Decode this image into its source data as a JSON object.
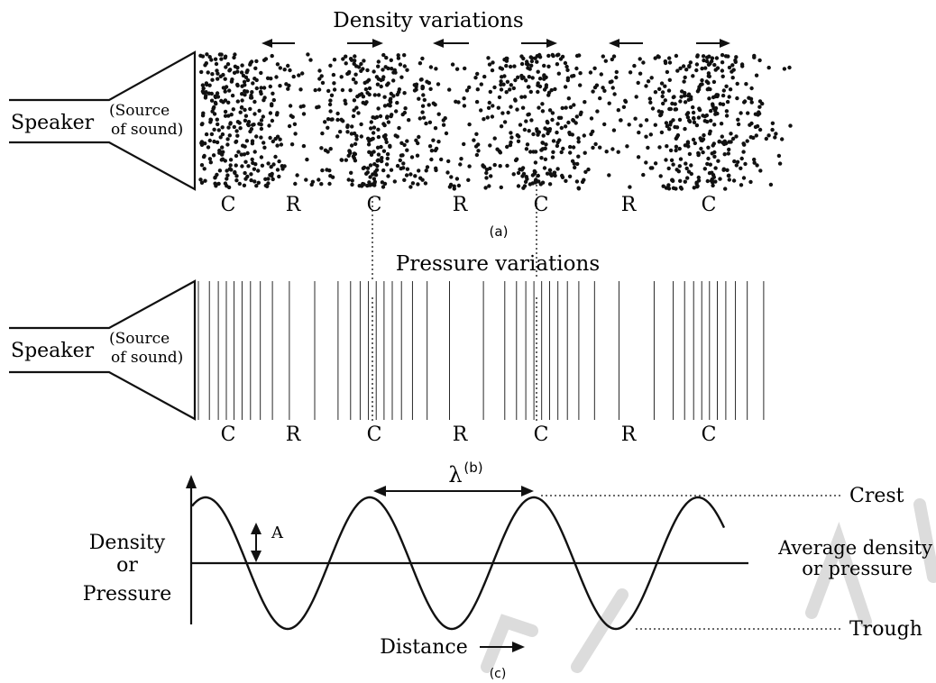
{
  "panel_a": {
    "title": "Density variations",
    "speaker_label": "Speaker",
    "source_label_line1": "(Source",
    "source_label_line2": "of sound)",
    "zone_labels": [
      "C",
      "R",
      "C",
      "R",
      "C",
      "R",
      "C"
    ],
    "caption": "(a)"
  },
  "panel_b": {
    "title": "Pressure variations",
    "speaker_label": "Speaker",
    "source_label_line1": "(Source",
    "source_label_line2": "of sound)",
    "zone_labels": [
      "C",
      "R",
      "C",
      "R",
      "C",
      "R",
      "C"
    ],
    "caption": "(b)"
  },
  "panel_c": {
    "y_label_line1": "Density",
    "y_label_line2": "or",
    "y_label_line3": "Pressure",
    "x_label": "Distance",
    "wavelength_label": "λ",
    "amplitude_label": "A",
    "crest_label": "Crest",
    "trough_label": "Trough",
    "average_label_line1": "Average density",
    "average_label_line2": "or pressure",
    "caption": "(c)"
  },
  "colors": {
    "ink": "#111111",
    "background": "#ffffff",
    "watermark": "#d9d9d9"
  }
}
